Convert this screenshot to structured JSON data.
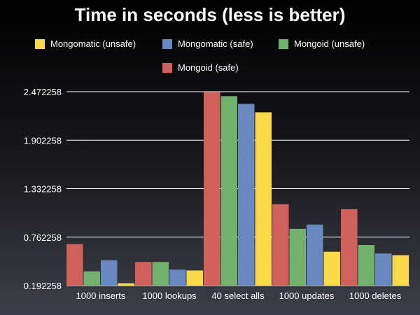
{
  "chart_data": {
    "type": "bar",
    "title": "Time in seconds (less is better)",
    "xlabel": "",
    "ylabel": "",
    "categories": [
      "1000 inserts",
      "1000 lookups",
      "40 select alls",
      "1000 updates",
      "1000 deletes"
    ],
    "series": [
      {
        "name": "Mongoid (safe)",
        "color": "#d0605a",
        "values": [
          0.68,
          0.47,
          2.47,
          1.15,
          1.09
        ]
      },
      {
        "name": "Mongoid (unsafe)",
        "color": "#72b06e",
        "values": [
          0.36,
          0.47,
          2.42,
          0.86,
          0.67
        ]
      },
      {
        "name": "Mongomatic (safe)",
        "color": "#6a88c0",
        "values": [
          0.49,
          0.38,
          2.33,
          0.91,
          0.57
        ]
      },
      {
        "name": "Mongomatic (unsafe)",
        "color": "#f8d94a",
        "values": [
          0.22,
          0.37,
          2.23,
          0.59,
          0.55
        ]
      }
    ],
    "legend_order": [
      3,
      2,
      1,
      0
    ],
    "ylim": [
      0.192258,
      2.472258
    ],
    "yticks": [
      "0.192258",
      "0.762258",
      "1.332258",
      "1.902258",
      "2.472258"
    ],
    "grid": true,
    "legend_position": "top"
  }
}
